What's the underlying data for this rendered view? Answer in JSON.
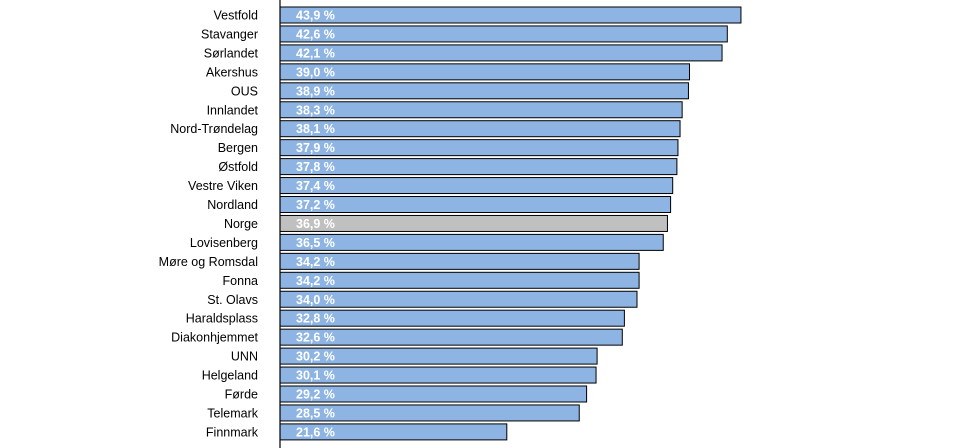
{
  "chart_data": {
    "type": "bar",
    "orientation": "horizontal",
    "grid": false,
    "legend": "none",
    "categories": [
      "Vestfold",
      "Stavanger",
      "Sørlandet",
      "Akershus",
      "OUS",
      "Innlandet",
      "Nord-Trøndelag",
      "Bergen",
      "Østfold",
      "Vestre Viken",
      "Nordland",
      "Norge",
      "Lovisenberg",
      "Møre og Romsdal",
      "Fonna",
      "St. Olavs",
      "Haraldsplass",
      "Diakonhjemmet",
      "UNN",
      "Helgeland",
      "Førde",
      "Telemark",
      "Finnmark"
    ],
    "values": [
      43.9,
      42.6,
      42.1,
      39.0,
      38.9,
      38.3,
      38.1,
      37.9,
      37.8,
      37.4,
      37.2,
      36.9,
      36.5,
      34.2,
      34.2,
      34.0,
      32.8,
      32.6,
      30.2,
      30.1,
      29.2,
      28.5,
      21.6
    ],
    "value_labels": [
      "43,9 %",
      "42,6 %",
      "42,1 %",
      "39,0 %",
      "38,9 %",
      "38,3 %",
      "38,1 %",
      "37,9 %",
      "37,8 %",
      "37,4 %",
      "37,2 %",
      "36,9 %",
      "36,5 %",
      "34,2 %",
      "34,2 %",
      "34,0 %",
      "32,8 %",
      "32,6 %",
      "30,2 %",
      "30,1 %",
      "29,2 %",
      "28,5 %",
      "21,6 %"
    ],
    "highlight_category": "Norge",
    "xlim": [
      0,
      60
    ],
    "colors": {
      "bar": "#8db4e2",
      "highlight": "#c0c0c0",
      "border": "#000000",
      "value_text": "#ffffff"
    }
  }
}
